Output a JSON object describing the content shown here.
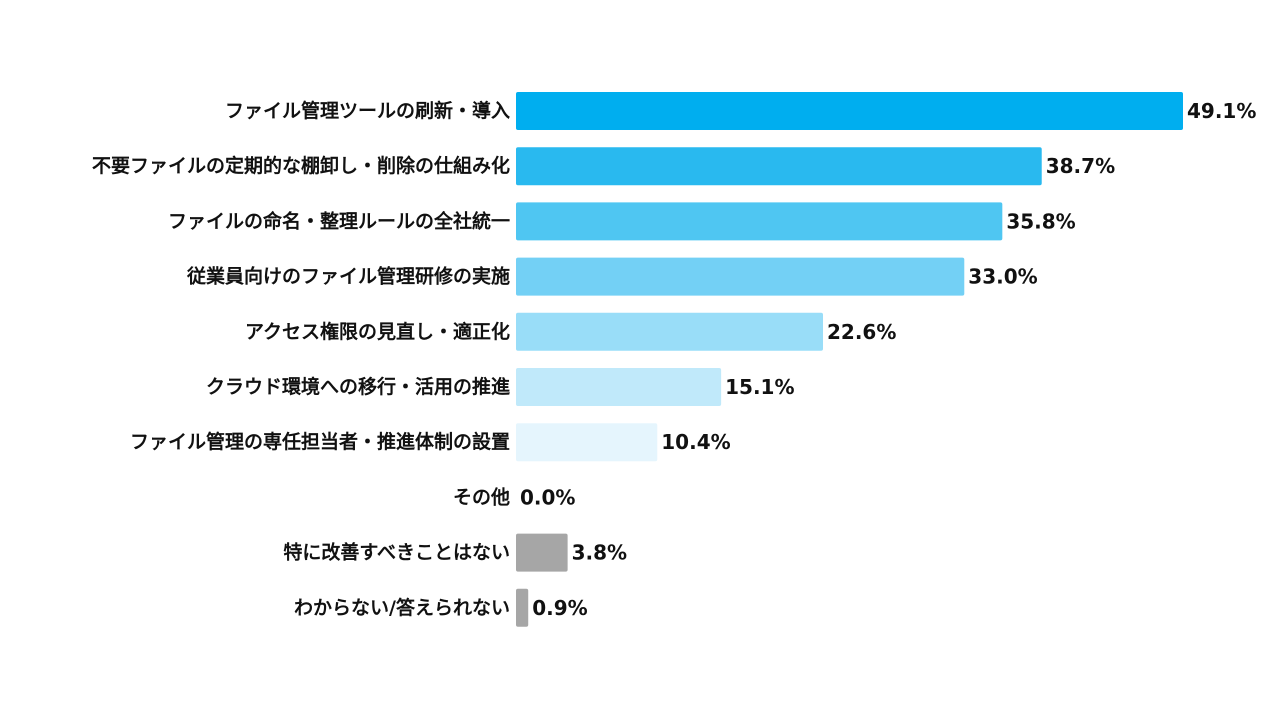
{
  "chart_data": {
    "type": "bar",
    "orientation": "horizontal",
    "categories": [
      "ファイル管理ツールの刷新・導入",
      "不要ファイルの定期的な棚卸し・削除の仕組み化",
      "ファイルの命名・整理ルールの全社統一",
      "従業員向けのファイル管理研修の実施",
      "アクセス権限の見直し・適正化",
      "クラウド環境への移行・活用の推進",
      "ファイル管理の専任担当者・推進体制の設置",
      "その他",
      "特に改善すべきことはない",
      "わからない/答えられない"
    ],
    "values": [
      49.1,
      38.7,
      35.8,
      33.0,
      22.6,
      15.1,
      10.4,
      0.0,
      3.8,
      0.9
    ],
    "value_labels": [
      "49.1%",
      "38.7%",
      "35.8%",
      "33.0%",
      "22.6%",
      "15.1%",
      "10.4%",
      "0.0%",
      "3.8%",
      "0.9%"
    ],
    "colors": [
      "#00aeef",
      "#29b9ef",
      "#4fc6f2",
      "#73d0f5",
      "#99ddf8",
      "#c0e9fa",
      "#e5f5fd",
      "#e5f5fd",
      "#a6a6a6",
      "#a6a6a6"
    ],
    "unit": "%",
    "legend": "none",
    "grid": false
  }
}
